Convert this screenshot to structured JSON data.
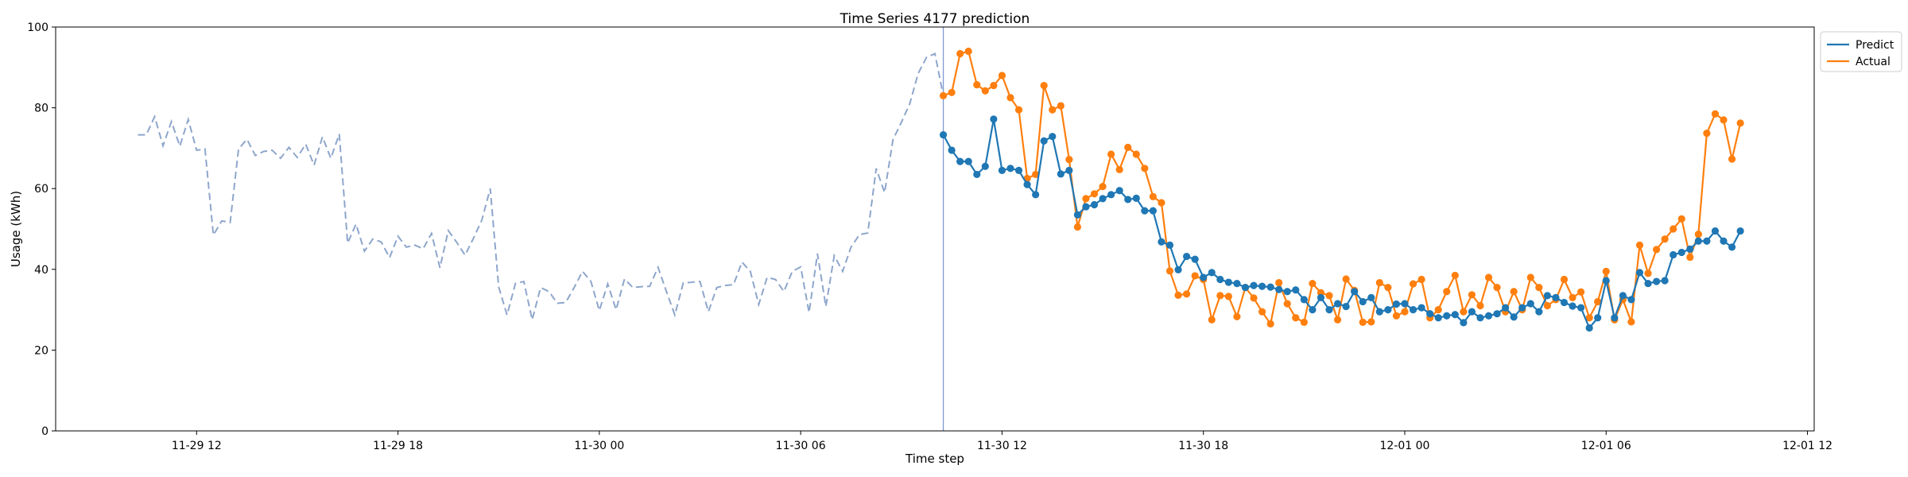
{
  "chart_data": {
    "type": "line",
    "title": "Time Series 4177 prediction",
    "xlabel": "Time step",
    "ylabel": "Usage (kWh)",
    "ylim": [
      0,
      100
    ],
    "yticks": [
      0,
      20,
      40,
      60,
      80,
      100
    ],
    "xlim": [
      "2024-11-29 07:48",
      "2024-12-01 12:12"
    ],
    "xticks": [
      "11-29 12",
      "11-29 18",
      "11-30 00",
      "11-30 06",
      "11-30 12",
      "11-30 18",
      "12-01 00",
      "12-01 06",
      "12-01 12"
    ],
    "xtick_datetimes": [
      "2024-11-29 12:00",
      "2024-11-29 18:00",
      "2024-11-30 00:00",
      "2024-11-30 06:00",
      "2024-11-30 12:00",
      "2024-11-30 18:00",
      "2024-12-01 00:00",
      "2024-12-01 06:00",
      "2024-12-01 12:00"
    ],
    "legend_position": "upper-right-outside",
    "forecast_start": "2024-11-30 10:15",
    "history": {
      "start": "2024-11-29 10:15",
      "step_minutes": 15,
      "color": "#8ea6cb",
      "style": "dashed",
      "values": [
        73.3,
        73.3,
        77.8,
        70.6,
        76.6,
        70.5,
        77.1,
        69.5,
        69.8,
        48.5,
        52.0,
        51.6,
        69.8,
        72.2,
        68.2,
        69.2,
        69.5,
        67.5,
        70.2,
        67.7,
        71.0,
        65.8,
        72.8,
        67.5,
        73.5,
        46.5,
        51.2,
        44.5,
        47.5,
        46.8,
        42.9,
        48.2,
        45.5,
        46.0,
        45.1,
        48.9,
        40.4,
        49.6,
        46.7,
        43.5,
        47.7,
        52.2,
        60.0,
        35.7,
        28.7,
        36.5,
        37.0,
        27.5,
        35.5,
        34.5,
        31.6,
        31.8,
        35.5,
        39.5,
        37.0,
        29.8,
        36.4,
        30.0,
        37.6,
        35.5,
        35.7,
        35.8,
        40.5,
        34.5,
        28.7,
        36.6,
        36.8,
        37.0,
        29.5,
        35.5,
        36.0,
        36.2,
        41.8,
        39.5,
        31.3,
        38.0,
        37.5,
        34.5,
        39.5,
        40.6,
        29.3,
        43.9,
        30.8,
        43.4,
        39.5,
        45.5,
        48.6,
        49.0,
        65.0,
        59.0,
        72.1,
        76.4,
        81.0,
        88.5,
        92.5,
        93.4,
        83.0
      ]
    },
    "forecast": {
      "start": "2024-11-30 10:15",
      "step_minutes": 15,
      "series": [
        {
          "name": "Predict",
          "color": "#1f77b4",
          "values": [
            73.3,
            69.5,
            66.7,
            66.7,
            63.5,
            65.5,
            77.2,
            64.5,
            65.0,
            64.5,
            61.0,
            58.5,
            71.8,
            72.9,
            63.6,
            64.5,
            53.5,
            55.5,
            56.0,
            57.5,
            58.5,
            59.5,
            57.3,
            57.6,
            54.5,
            54.5,
            46.8,
            46.0,
            39.9,
            43.2,
            42.5,
            38.0,
            39.2,
            37.5,
            36.8,
            36.5,
            35.5,
            36.0,
            35.8,
            35.6,
            35.0,
            34.5,
            34.9,
            32.5,
            30.0,
            33.0,
            30.0,
            31.5,
            30.8,
            34.5,
            32.0,
            33.0,
            29.5,
            30.0,
            31.4,
            31.5,
            30.0,
            30.5,
            29.0,
            28.0,
            28.5,
            28.8,
            26.8,
            29.5,
            28.0,
            28.5,
            29.0,
            30.5,
            28.2,
            30.5,
            31.5,
            29.5,
            33.5,
            33.0,
            31.8,
            30.9,
            30.5,
            25.5,
            28.0,
            37.2,
            28.0,
            33.5,
            32.5,
            39.2,
            36.5,
            37.0,
            37.2,
            43.6,
            44.2,
            45.0,
            47.0,
            47.0,
            49.5,
            47.0,
            45.5,
            49.5
          ]
        },
        {
          "name": "Actual",
          "color": "#ff7f0e",
          "values": [
            83.0,
            83.8,
            93.4,
            94.0,
            85.7,
            84.2,
            85.5,
            88.0,
            82.5,
            79.5,
            62.5,
            63.5,
            85.5,
            79.5,
            80.5,
            67.2,
            50.5,
            57.5,
            58.7,
            60.5,
            68.5,
            64.7,
            70.2,
            68.5,
            65.0,
            58.0,
            56.5,
            39.6,
            33.6,
            33.9,
            38.4,
            37.5,
            27.5,
            33.5,
            33.3,
            28.3,
            35.5,
            32.9,
            29.5,
            26.5,
            36.7,
            31.5,
            28.0,
            26.9,
            36.5,
            34.2,
            33.5,
            27.5,
            37.6,
            34.8,
            26.9,
            27.0,
            36.7,
            35.5,
            28.5,
            29.5,
            36.4,
            37.5,
            28.0,
            30.0,
            34.5,
            38.5,
            29.5,
            33.7,
            31.0,
            38.0,
            35.5,
            29.5,
            34.5,
            30.0,
            38.0,
            35.5,
            31.0,
            32.5,
            37.5,
            33.0,
            34.4,
            28.0,
            32.0,
            39.5,
            27.5,
            32.5,
            27.0,
            46.0,
            39.0,
            44.9,
            47.5,
            50.0,
            52.5,
            43.0,
            48.7,
            73.7,
            78.5,
            77.0,
            67.3,
            76.2
          ]
        }
      ]
    }
  }
}
